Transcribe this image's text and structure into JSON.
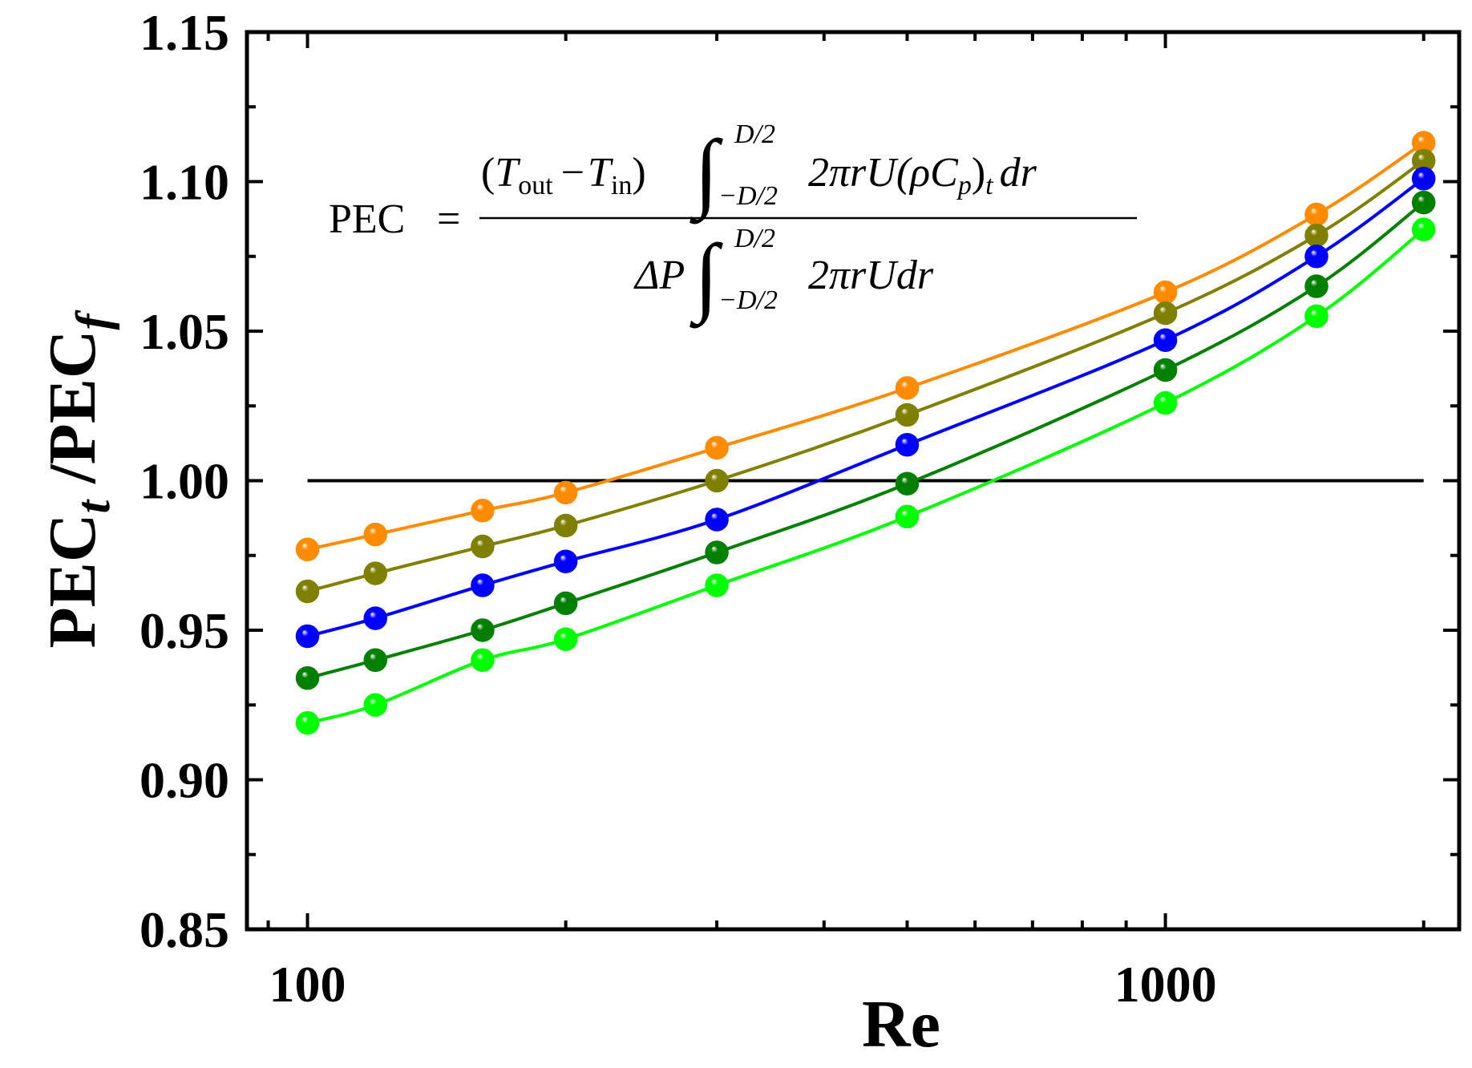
{
  "chart_data": {
    "type": "line",
    "title": "",
    "xlabel": "Re",
    "ylabel_main": "PEC",
    "ylabel_sub_t": "t",
    "ylabel_slash": " /PEC",
    "ylabel_sub_f": "f",
    "xscale": "log",
    "xlim": [
      85,
      2200
    ],
    "ylim": [
      0.85,
      1.15
    ],
    "x_tick_labels": [
      {
        "value": 100,
        "label": "100"
      },
      {
        "value": 1000,
        "label": "1000"
      }
    ],
    "y_tick_labels": [
      {
        "value": 0.85,
        "label": "0.85"
      },
      {
        "value": 0.9,
        "label": "0.90"
      },
      {
        "value": 0.95,
        "label": "0.95"
      },
      {
        "value": 1.0,
        "label": "1.00"
      },
      {
        "value": 1.05,
        "label": "1.05"
      },
      {
        "value": 1.1,
        "label": "1.10"
      },
      {
        "value": 1.15,
        "label": "1.15"
      }
    ],
    "reference_line": {
      "y": 1.0,
      "x_from": 100,
      "x_to": 2000,
      "color": "#000000"
    },
    "x": [
      100,
      120,
      160,
      200,
      300,
      500,
      1000,
      1500,
      2000
    ],
    "series": [
      {
        "name": "orange",
        "color": "#ff8c00",
        "values": [
          0.977,
          0.982,
          0.99,
          0.996,
          1.011,
          1.031,
          1.063,
          1.089,
          1.113
        ]
      },
      {
        "name": "olive",
        "color": "#808000",
        "values": [
          0.963,
          0.969,
          0.978,
          0.985,
          1.0,
          1.022,
          1.056,
          1.082,
          1.107
        ]
      },
      {
        "name": "blue",
        "color": "#0000ff",
        "values": [
          0.948,
          0.954,
          0.965,
          0.973,
          0.987,
          1.012,
          1.047,
          1.075,
          1.101
        ]
      },
      {
        "name": "dark-green",
        "color": "#007f00",
        "values": [
          0.934,
          0.94,
          0.95,
          0.959,
          0.976,
          0.999,
          1.037,
          1.065,
          1.093
        ]
      },
      {
        "name": "bright-green",
        "color": "#00ff00",
        "values": [
          0.919,
          0.925,
          0.94,
          0.947,
          0.965,
          0.988,
          1.026,
          1.055,
          1.084
        ]
      }
    ]
  },
  "formula": {
    "lhs": "PEC",
    "equals": "=",
    "num_open": "(",
    "T": "T",
    "sub_out": "out",
    "minus": "−",
    "sub_in": "in",
    "num_close": ")",
    "integral": "∫",
    "upper_limit": "D/2",
    "lower_limit": "−D/2",
    "num_integrand": "2πrU(ρC",
    "sub_p": "p",
    "num_close2": ")",
    "sub_t": "t",
    "num_dr": "dr",
    "den_deltaP": "ΔP",
    "den_integrand": "2πrUdr"
  }
}
